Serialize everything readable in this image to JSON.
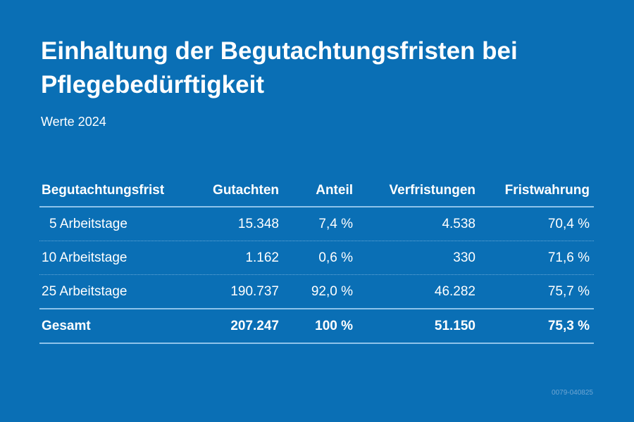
{
  "title": "Einhaltung der Begutachtungsfristen bei Pflegebedürftigkeit",
  "subtitle": "Werte 2024",
  "colors": {
    "background": "#0a6fb5",
    "text": "#ffffff",
    "rule": "#8ec3ea"
  },
  "chart_data": {
    "type": "table",
    "title": "Einhaltung der Begutachtungsfristen bei Pflegebedürftigkeit",
    "subtitle": "Werte 2024",
    "columns": [
      "Begutachtungsfrist",
      "Gutachten",
      "Anteil",
      "Verfristungen",
      "Fristwahrung"
    ],
    "rows": [
      [
        "5 Arbeitstage",
        "15.348",
        "7,4 %",
        "4.538",
        "70,4 %"
      ],
      [
        "10 Arbeitstage",
        "1.162",
        "0,6 %",
        "330",
        "71,6 %"
      ],
      [
        "25 Arbeitstage",
        "190.737",
        "92,0 %",
        "46.282",
        "75,7 %"
      ]
    ],
    "total": [
      "Gesamt",
      "207.247",
      "100 %",
      "51.150",
      "75,3 %"
    ]
  },
  "footer_code": "0079-040825"
}
